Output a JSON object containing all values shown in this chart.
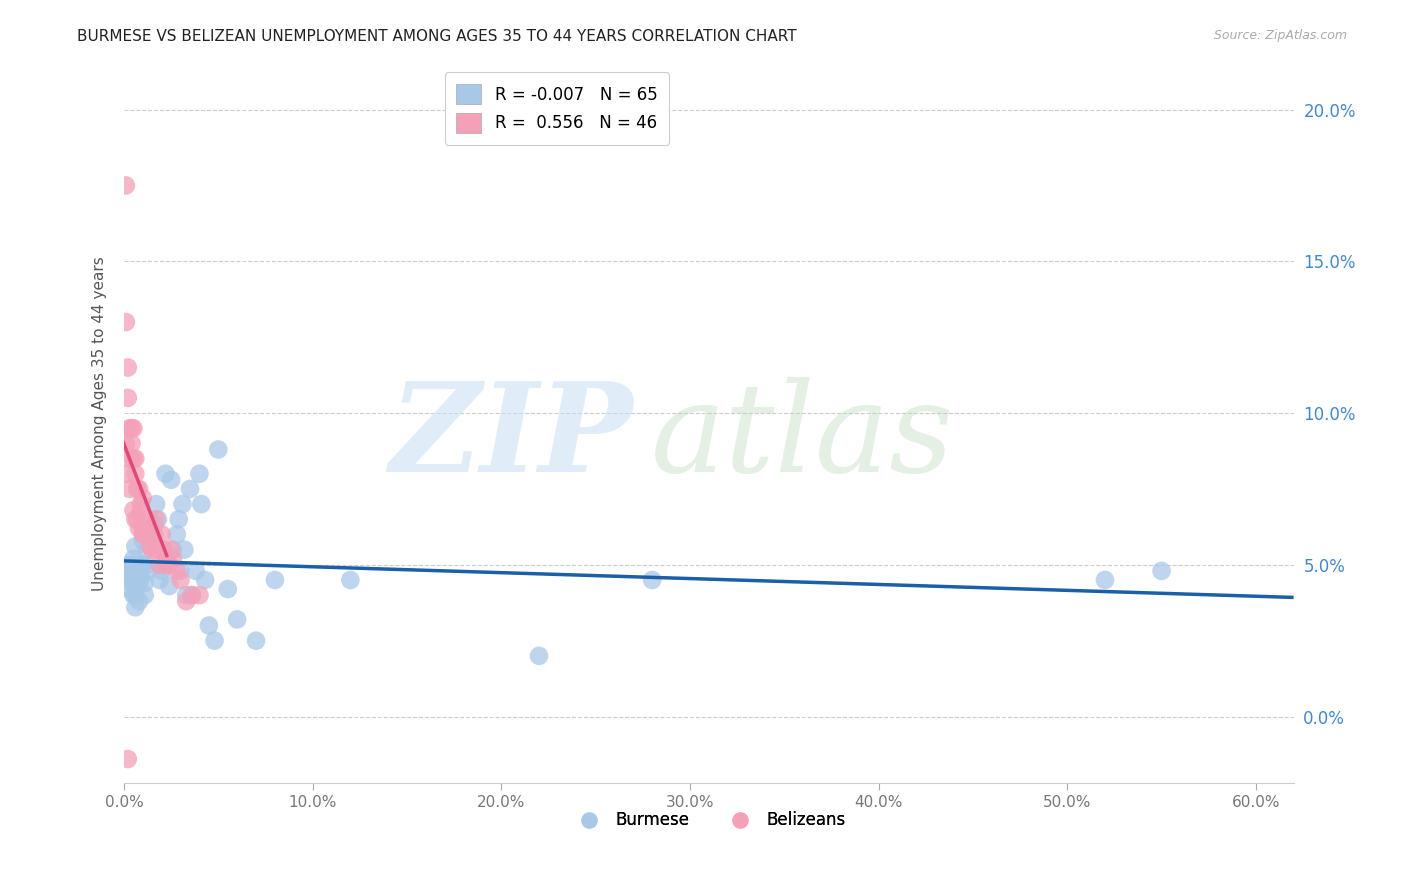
{
  "title": "BURMESE VS BELIZEAN UNEMPLOYMENT AMONG AGES 35 TO 44 YEARS CORRELATION CHART",
  "source": "Source: ZipAtlas.com",
  "ylabel": "Unemployment Among Ages 35 to 44 years",
  "watermark_zip": "ZIP",
  "watermark_atlas": "atlas",
  "xlim": [
    0.0,
    0.62
  ],
  "ylim": [
    -0.022,
    0.215
  ],
  "xtick_vals": [
    0.0,
    0.1,
    0.2,
    0.3,
    0.4,
    0.5,
    0.6
  ],
  "xtick_labels": [
    "0.0%",
    "10.0%",
    "20.0%",
    "30.0%",
    "40.0%",
    "50.0%",
    "60.0%"
  ],
  "ytick_vals": [
    0.0,
    0.05,
    0.1,
    0.15,
    0.2
  ],
  "ytick_labels": [
    "0.0%",
    "5.0%",
    "10.0%",
    "15.0%",
    "20.0%"
  ],
  "burmese_color": "#a8c8e8",
  "belizean_color": "#f4a0b8",
  "burmese_line_color": "#1a5fa8",
  "belizean_line_color": "#e04878",
  "R_burmese": -0.007,
  "R_belizean": 0.556,
  "N_burmese": 65,
  "N_belizean": 46,
  "legend_burmese_R": "R = -0.007",
  "legend_burmese_N": "N = 65",
  "legend_belizean_R": "R =  0.556",
  "legend_belizean_N": "N = 46",
  "legend_label_burmese": "Burmese",
  "legend_label_belizean": "Belizeans",
  "grid_color": "#cccccc",
  "title_fontsize": 11,
  "right_tick_color": "#4488cc",
  "bg_color": "#ffffff",
  "marker_size": 180,
  "marker_alpha": 0.75,
  "burmese_x": [
    0.001,
    0.002,
    0.003,
    0.003,
    0.004,
    0.004,
    0.005,
    0.005,
    0.005,
    0.006,
    0.006,
    0.006,
    0.006,
    0.007,
    0.007,
    0.007,
    0.008,
    0.008,
    0.009,
    0.009,
    0.01,
    0.01,
    0.01,
    0.011,
    0.011,
    0.012,
    0.012,
    0.013,
    0.014,
    0.015,
    0.016,
    0.017,
    0.018,
    0.019,
    0.02,
    0.021,
    0.022,
    0.023,
    0.024,
    0.025,
    0.026,
    0.028,
    0.029,
    0.03,
    0.031,
    0.032,
    0.033,
    0.035,
    0.036,
    0.038,
    0.04,
    0.041,
    0.043,
    0.045,
    0.048,
    0.05,
    0.055,
    0.06,
    0.07,
    0.08,
    0.12,
    0.22,
    0.28,
    0.52,
    0.55
  ],
  "burmese_y": [
    0.048,
    0.05,
    0.046,
    0.042,
    0.044,
    0.05,
    0.04,
    0.044,
    0.052,
    0.048,
    0.056,
    0.04,
    0.036,
    0.05,
    0.044,
    0.048,
    0.038,
    0.044,
    0.05,
    0.046,
    0.062,
    0.058,
    0.05,
    0.044,
    0.04,
    0.05,
    0.055,
    0.048,
    0.06,
    0.058,
    0.063,
    0.07,
    0.065,
    0.045,
    0.048,
    0.05,
    0.08,
    0.052,
    0.043,
    0.078,
    0.055,
    0.06,
    0.065,
    0.048,
    0.07,
    0.055,
    0.04,
    0.075,
    0.04,
    0.048,
    0.08,
    0.07,
    0.045,
    0.03,
    0.025,
    0.088,
    0.042,
    0.032,
    0.025,
    0.045,
    0.045,
    0.02,
    0.045,
    0.045,
    0.048
  ],
  "belizean_x": [
    0.001,
    0.001,
    0.001,
    0.002,
    0.002,
    0.002,
    0.003,
    0.003,
    0.003,
    0.004,
    0.004,
    0.005,
    0.005,
    0.005,
    0.006,
    0.006,
    0.006,
    0.007,
    0.007,
    0.008,
    0.008,
    0.009,
    0.009,
    0.01,
    0.01,
    0.011,
    0.012,
    0.013,
    0.014,
    0.015,
    0.016,
    0.017,
    0.018,
    0.019,
    0.02,
    0.021,
    0.022,
    0.024,
    0.025,
    0.026,
    0.028,
    0.03,
    0.033,
    0.036,
    0.04,
    0.002
  ],
  "belizean_y": [
    0.175,
    0.13,
    0.09,
    0.115,
    0.105,
    0.08,
    0.095,
    0.085,
    0.075,
    0.09,
    0.095,
    0.095,
    0.085,
    0.068,
    0.065,
    0.08,
    0.085,
    0.075,
    0.065,
    0.075,
    0.062,
    0.07,
    0.068,
    0.072,
    0.06,
    0.06,
    0.062,
    0.065,
    0.056,
    0.055,
    0.06,
    0.065,
    0.055,
    0.05,
    0.06,
    0.055,
    0.05,
    0.05,
    0.055,
    0.052,
    0.048,
    0.045,
    0.038,
    0.04,
    0.04,
    -0.014
  ]
}
